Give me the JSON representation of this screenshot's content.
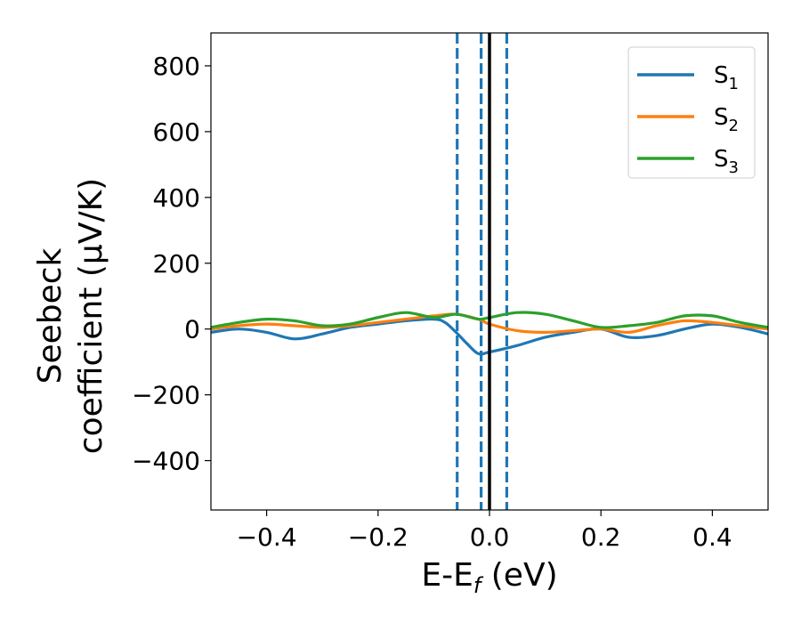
{
  "chart_data": {
    "type": "line",
    "title": "",
    "xlabel": "E-E",
    "xlabel_sub": "f",
    "xlabel_unit": " (eV)",
    "ylabel_line1": "Seebeck",
    "ylabel_line2": "coefficient  (μV/K)",
    "xlim": [
      -0.5,
      0.5
    ],
    "ylim": [
      -550,
      900
    ],
    "xticks": [
      -0.4,
      -0.2,
      0.0,
      0.2,
      0.4
    ],
    "xtick_labels": [
      "−0.4",
      "−0.2",
      "0.0",
      "0.2",
      "0.4"
    ],
    "yticks": [
      -400,
      -200,
      0,
      200,
      400,
      600,
      800
    ],
    "ytick_labels": [
      "−400",
      "−200",
      "0",
      "200",
      "400",
      "600",
      "800"
    ],
    "grid": false,
    "legend_position": "top-right",
    "series": [
      {
        "name": "S",
        "sub": "1",
        "color": "#1f77b4",
        "x": [
          -0.5,
          -0.45,
          -0.4,
          -0.35,
          -0.3,
          -0.25,
          -0.2,
          -0.15,
          -0.1,
          -0.08,
          -0.06,
          -0.04,
          -0.02,
          0.0,
          0.05,
          0.1,
          0.15,
          0.2,
          0.25,
          0.3,
          0.35,
          0.4,
          0.45,
          0.5
        ],
        "y": [
          -10,
          0,
          -10,
          -30,
          -15,
          5,
          15,
          25,
          30,
          20,
          -10,
          -45,
          -75,
          -70,
          -50,
          -25,
          -10,
          0,
          -25,
          -20,
          0,
          15,
          5,
          -15
        ]
      },
      {
        "name": "S",
        "sub": "2",
        "color": "#ff7f0e",
        "x": [
          -0.5,
          -0.45,
          -0.4,
          -0.35,
          -0.3,
          -0.25,
          -0.2,
          -0.15,
          -0.1,
          -0.06,
          -0.02,
          0.0,
          0.05,
          0.1,
          0.15,
          0.2,
          0.25,
          0.3,
          0.35,
          0.4,
          0.45,
          0.5
        ],
        "y": [
          0,
          10,
          15,
          10,
          5,
          10,
          20,
          30,
          40,
          45,
          30,
          15,
          -5,
          -10,
          -5,
          0,
          -10,
          10,
          25,
          20,
          10,
          0
        ]
      },
      {
        "name": "S",
        "sub": "3",
        "color": "#2ca02c",
        "x": [
          -0.5,
          -0.45,
          -0.4,
          -0.35,
          -0.3,
          -0.25,
          -0.2,
          -0.15,
          -0.1,
          -0.06,
          -0.02,
          0.0,
          0.05,
          0.1,
          0.15,
          0.2,
          0.25,
          0.3,
          0.35,
          0.4,
          0.45,
          0.5
        ],
        "y": [
          5,
          20,
          30,
          25,
          10,
          15,
          35,
          50,
          35,
          45,
          30,
          35,
          50,
          45,
          25,
          5,
          10,
          20,
          40,
          40,
          20,
          5
        ]
      }
    ],
    "vertical_lines": [
      {
        "x": -0.058,
        "style": "dashed",
        "color": "#1f77b4"
      },
      {
        "x": -0.015,
        "style": "dashed",
        "color": "#1f77b4"
      },
      {
        "x": 0.031,
        "style": "dashed",
        "color": "#1f77b4"
      },
      {
        "x": 0.0,
        "style": "solid",
        "color": "#000000"
      }
    ]
  }
}
